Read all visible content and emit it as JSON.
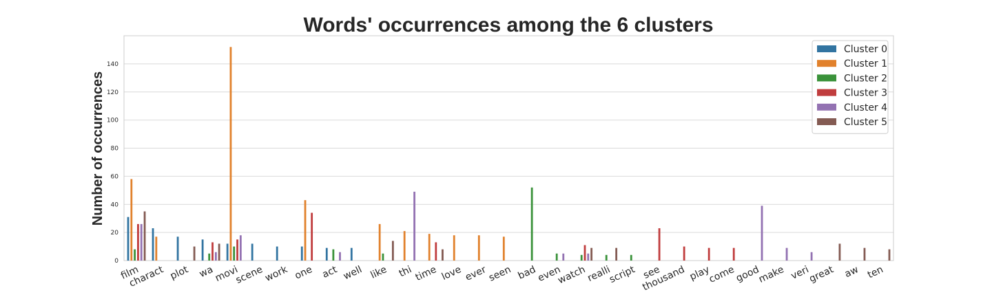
{
  "chart_data": {
    "type": "bar",
    "title": "Words' occurrences among the 6 clusters",
    "xlabel": "",
    "ylabel": "Number of occurrences",
    "ylim": [
      0,
      160
    ],
    "yticks": [
      0,
      20,
      40,
      60,
      80,
      100,
      120,
      140
    ],
    "grid": true,
    "legend_placement": "top-right",
    "categories": [
      "film",
      "charact",
      "plot",
      "wa",
      "movi",
      "scene",
      "work",
      "one",
      "act",
      "well",
      "like",
      "thi",
      "time",
      "love",
      "ever",
      "seen",
      "bad",
      "even",
      "watch",
      "realli",
      "script",
      "see",
      "thousand",
      "play",
      "come",
      "good",
      "make",
      "veri",
      "great",
      "aw",
      "ten"
    ],
    "series": [
      {
        "name": "Cluster 0",
        "color": "#3274a1",
        "values": [
          31,
          23,
          17,
          15,
          12,
          12,
          10,
          10,
          9,
          9,
          0,
          0,
          0,
          0,
          0,
          0,
          0,
          0,
          0,
          0,
          0,
          0,
          0,
          0,
          0,
          0,
          0,
          0,
          0,
          0,
          0
        ]
      },
      {
        "name": "Cluster 1",
        "color": "#e1812c",
        "values": [
          58,
          17,
          0,
          0,
          152,
          0,
          0,
          43,
          0,
          0,
          26,
          21,
          19,
          18,
          18,
          17,
          0,
          0,
          0,
          0,
          0,
          0,
          0,
          0,
          0,
          0,
          0,
          0,
          0,
          0,
          0
        ]
      },
      {
        "name": "Cluster 2",
        "color": "#3a923a",
        "values": [
          8,
          0,
          0,
          5,
          10,
          0,
          0,
          0,
          8,
          0,
          5,
          0,
          0,
          0,
          0,
          0,
          52,
          5,
          4,
          4,
          4,
          0,
          0,
          0,
          0,
          0,
          0,
          0,
          0,
          0,
          0
        ]
      },
      {
        "name": "Cluster 3",
        "color": "#c03d3e",
        "values": [
          26,
          0,
          0,
          13,
          15,
          0,
          0,
          34,
          0,
          0,
          0,
          0,
          13,
          0,
          0,
          0,
          0,
          0,
          11,
          0,
          0,
          23,
          10,
          9,
          9,
          0,
          0,
          0,
          0,
          0,
          0
        ]
      },
      {
        "name": "Cluster 4",
        "color": "#9372b2",
        "values": [
          26,
          0,
          0,
          6,
          18,
          0,
          0,
          0,
          6,
          0,
          0,
          49,
          0,
          0,
          0,
          0,
          0,
          5,
          5,
          0,
          0,
          0,
          0,
          0,
          0,
          39,
          9,
          6,
          0,
          0,
          0
        ]
      },
      {
        "name": "Cluster 5",
        "color": "#845b53",
        "values": [
          35,
          0,
          10,
          12,
          0,
          0,
          0,
          0,
          0,
          0,
          14,
          0,
          8,
          0,
          0,
          0,
          0,
          0,
          9,
          9,
          0,
          0,
          0,
          0,
          0,
          0,
          0,
          0,
          12,
          9,
          8
        ]
      }
    ]
  }
}
